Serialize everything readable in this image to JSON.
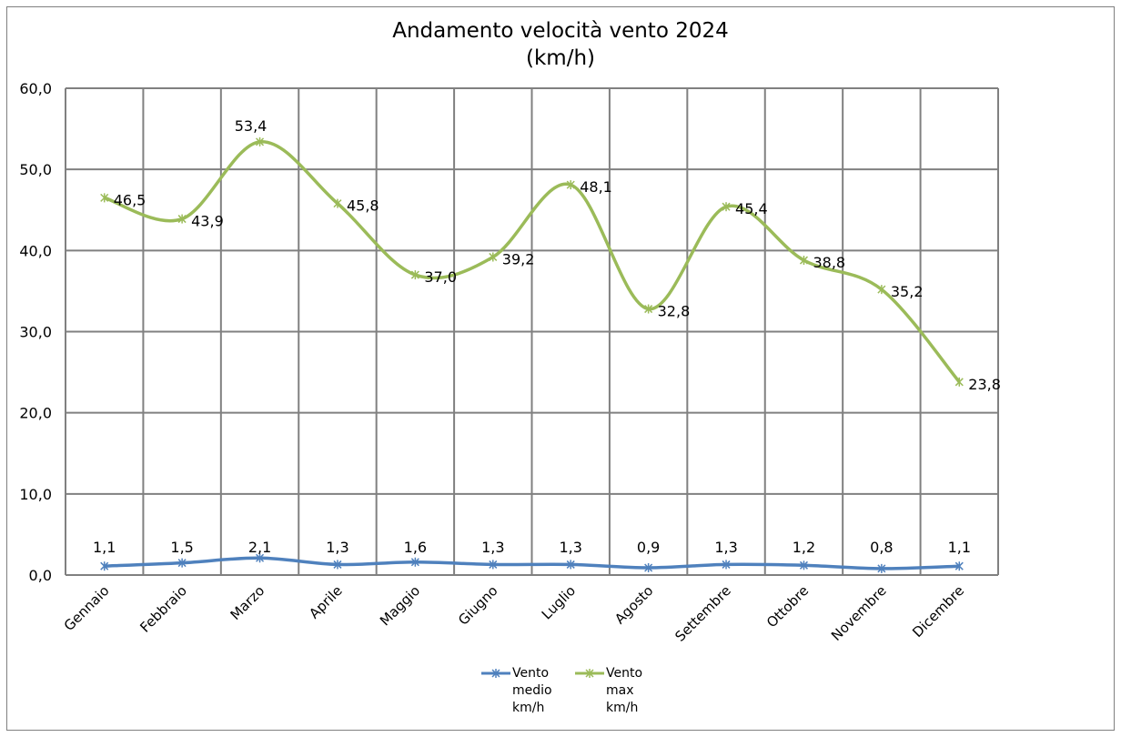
{
  "chart_data": {
    "type": "line",
    "title": "Andamento velocità vento 2024",
    "subtitle": "(km/h)",
    "categories": [
      "Gennaio",
      "Febbraio",
      "Marzo",
      "Aprile",
      "Maggio",
      "Giugno",
      "Luglio",
      "Agosto",
      "Settembre",
      "Ottobre",
      "Novembre",
      "Dicembre"
    ],
    "series": [
      {
        "name": "Vento medio km/h",
        "color": "#4f81bd",
        "values": [
          1.1,
          1.5,
          2.1,
          1.3,
          1.6,
          1.3,
          1.3,
          0.9,
          1.3,
          1.2,
          0.8,
          1.1
        ],
        "labels": [
          "1,1",
          "1,5",
          "2,1",
          "1,3",
          "1,6",
          "1,3",
          "1,3",
          "0,9",
          "1,3",
          "1,2",
          "0,8",
          "1,1"
        ]
      },
      {
        "name": "Vento max km/h",
        "color": "#9bbb59",
        "values": [
          46.5,
          43.9,
          53.4,
          45.8,
          37.0,
          39.2,
          48.1,
          32.8,
          45.4,
          38.8,
          35.2,
          23.8
        ],
        "labels": [
          "46,5",
          "43,9",
          "53,4",
          "45,8",
          "37,0",
          "39,2",
          "48,1",
          "32,8",
          "45,4",
          "38,8",
          "35,2",
          "23,8"
        ]
      }
    ],
    "ylim": [
      0,
      60
    ],
    "yticks": [
      "0,0",
      "10,0",
      "20,0",
      "30,0",
      "40,0",
      "50,0",
      "60,0"
    ],
    "grid": true,
    "legend": "bottom"
  },
  "legend": {
    "medio_label": "Vento\nmedio\nkm/h",
    "max_label": "Vento\nmax\nkm/h"
  }
}
